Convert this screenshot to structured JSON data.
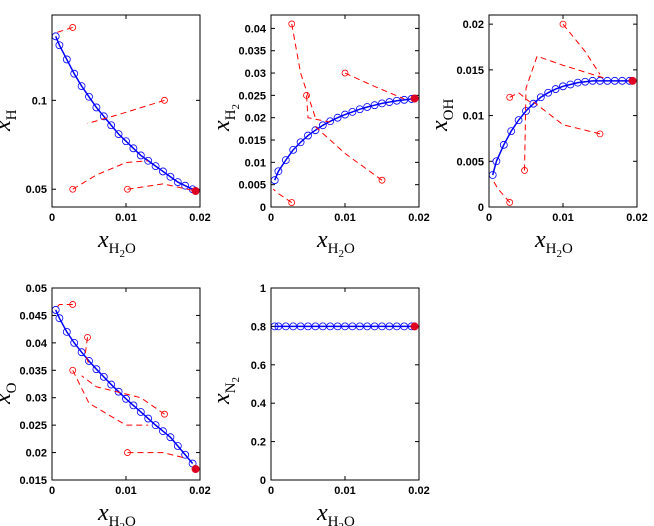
{
  "chart_data": [
    {
      "type": "line",
      "ylabel": {
        "base": "x",
        "sub": [
          "H"
        ]
      },
      "xlabel": {
        "base": "x",
        "sub": [
          "H",
          "2",
          "O"
        ]
      },
      "xlim": [
        0,
        0.02
      ],
      "xticks": [
        0,
        0.01,
        0.02
      ],
      "ylim": [
        0.04,
        0.148
      ],
      "yticks": [
        0.05,
        0.1
      ],
      "series": [
        {
          "color": "#0000ff",
          "marker": "open",
          "x": [
            0.0005,
            0.001,
            0.002,
            0.003,
            0.004,
            0.005,
            0.006,
            0.007,
            0.008,
            0.009,
            0.01,
            0.011,
            0.012,
            0.013,
            0.014,
            0.015,
            0.016,
            0.017,
            0.018,
            0.019
          ],
          "values": [
            0.136,
            0.131,
            0.123,
            0.115,
            0.108,
            0.102,
            0.096,
            0.091,
            0.086,
            0.081,
            0.077,
            0.073,
            0.069,
            0.066,
            0.063,
            0.06,
            0.057,
            0.054,
            0.052,
            0.05
          ]
        },
        {
          "color": "#ff0000",
          "dash": true,
          "marker": "start",
          "x": [
            0.0028,
            0.0005
          ],
          "values": [
            0.141,
            0.138
          ]
        },
        {
          "color": "#ff0000",
          "dash": true,
          "marker": "start",
          "x": [
            0.0152,
            0.009,
            0.0048
          ],
          "values": [
            0.1,
            0.092,
            0.087
          ]
        },
        {
          "color": "#ff0000",
          "dash": true,
          "marker": "start",
          "x": [
            0.0028,
            0.006,
            0.01,
            0.013
          ],
          "values": [
            0.05,
            0.058,
            0.065,
            0.066
          ]
        },
        {
          "color": "#ff0000",
          "dash": true,
          "marker": "start",
          "x": [
            0.0102,
            0.015,
            0.0194
          ],
          "values": [
            0.05,
            0.053,
            0.049
          ]
        },
        {
          "color": "#dd0022",
          "marker": "filled",
          "x": [
            0.0194
          ],
          "values": [
            0.049
          ]
        }
      ]
    },
    {
      "type": "line",
      "ylabel": {
        "base": "x",
        "sub": [
          "H",
          "2"
        ]
      },
      "xlabel": {
        "base": "x",
        "sub": [
          "H",
          "2",
          "O"
        ]
      },
      "xlim": [
        0,
        0.02
      ],
      "xticks": [
        0,
        0.01,
        0.02
      ],
      "ylim": [
        0,
        0.043
      ],
      "yticks": [
        0,
        0.005,
        0.01,
        0.015,
        0.02,
        0.025,
        0.03,
        0.035,
        0.04
      ],
      "series": [
        {
          "color": "#0000ff",
          "marker": "open",
          "x": [
            0.0005,
            0.001,
            0.002,
            0.003,
            0.004,
            0.005,
            0.006,
            0.007,
            0.008,
            0.009,
            0.01,
            0.011,
            0.012,
            0.013,
            0.014,
            0.015,
            0.016,
            0.017,
            0.018,
            0.019
          ],
          "values": [
            0.006,
            0.008,
            0.0105,
            0.0128,
            0.0145,
            0.016,
            0.0172,
            0.0183,
            0.0192,
            0.02,
            0.0207,
            0.0213,
            0.0219,
            0.0224,
            0.0228,
            0.0232,
            0.0235,
            0.0238,
            0.024,
            0.0242
          ]
        },
        {
          "color": "#ff0000",
          "dash": true,
          "marker": "start",
          "x": [
            0.0028,
            0.004,
            0.006
          ],
          "values": [
            0.041,
            0.03,
            0.02
          ]
        },
        {
          "color": "#ff0000",
          "dash": true,
          "marker": "start",
          "x": [
            0.01,
            0.014,
            0.018
          ],
          "values": [
            0.03,
            0.027,
            0.0242
          ]
        },
        {
          "color": "#ff0000",
          "dash": true,
          "marker": "start",
          "x": [
            0.0048,
            0.005,
            0.008
          ],
          "values": [
            0.025,
            0.02,
            0.019
          ]
        },
        {
          "color": "#ff0000",
          "dash": true,
          "marker": "start",
          "x": [
            0.015,
            0.01,
            0.006
          ],
          "values": [
            0.006,
            0.012,
            0.018
          ]
        },
        {
          "color": "#ff0000",
          "dash": true,
          "marker": "start",
          "x": [
            0.0028,
            0.001,
            0.0003
          ],
          "values": [
            0.001,
            0.003,
            0.004
          ]
        },
        {
          "color": "#dd0022",
          "marker": "filled",
          "x": [
            0.0194
          ],
          "values": [
            0.0243
          ]
        }
      ]
    },
    {
      "type": "line",
      "ylabel": {
        "base": "x",
        "sub": [
          "OH"
        ]
      },
      "xlabel": {
        "base": "x",
        "sub": [
          "H",
          "2",
          "O"
        ]
      },
      "xlim": [
        0,
        0.02
      ],
      "xticks": [
        0,
        0.01,
        0.02
      ],
      "ylim": [
        0,
        0.021
      ],
      "yticks": [
        0,
        0.005,
        0.01,
        0.015,
        0.02
      ],
      "series": [
        {
          "color": "#0000ff",
          "marker": "open",
          "x": [
            0.0005,
            0.001,
            0.002,
            0.003,
            0.004,
            0.005,
            0.006,
            0.007,
            0.008,
            0.009,
            0.01,
            0.011,
            0.012,
            0.013,
            0.014,
            0.015,
            0.016,
            0.017,
            0.018,
            0.019
          ],
          "values": [
            0.0035,
            0.005,
            0.0068,
            0.0083,
            0.0095,
            0.0105,
            0.0113,
            0.012,
            0.0125,
            0.0129,
            0.0132,
            0.0134,
            0.0136,
            0.0137,
            0.0138,
            0.0138,
            0.0138,
            0.0138,
            0.0138,
            0.0138
          ]
        },
        {
          "color": "#ff0000",
          "dash": true,
          "marker": "start",
          "x": [
            0.01,
            0.013,
            0.015
          ],
          "values": [
            0.02,
            0.017,
            0.0145
          ]
        },
        {
          "color": "#ff0000",
          "dash": true,
          "marker": "start",
          "x": [
            0.0028,
            0.004,
            0.0055
          ],
          "values": [
            0.012,
            0.0125,
            0.0115
          ]
        },
        {
          "color": "#ff0000",
          "dash": true,
          "marker": "start",
          "x": [
            0.0048,
            0.005,
            0.0065,
            0.01,
            0.016
          ],
          "values": [
            0.004,
            0.013,
            0.0165,
            0.0155,
            0.014
          ]
        },
        {
          "color": "#ff0000",
          "dash": true,
          "marker": "start",
          "x": [
            0.015,
            0.01,
            0.006
          ],
          "values": [
            0.008,
            0.009,
            0.0115
          ]
        },
        {
          "color": "#ff0000",
          "dash": true,
          "marker": "start",
          "x": [
            0.0028,
            0.0012,
            0.0005
          ],
          "values": [
            0.0005,
            0.002,
            0.003
          ]
        },
        {
          "color": "#dd0022",
          "marker": "filled",
          "x": [
            0.0194
          ],
          "values": [
            0.0138
          ]
        }
      ]
    },
    {
      "type": "line",
      "ylabel": {
        "base": "x",
        "sub": [
          "O"
        ]
      },
      "xlabel": {
        "base": "x",
        "sub": [
          "H",
          "2",
          "O"
        ]
      },
      "xlim": [
        0,
        0.02
      ],
      "xticks": [
        0,
        0.01,
        0.02
      ],
      "ylim": [
        0.015,
        0.05
      ],
      "yticks": [
        0.015,
        0.02,
        0.025,
        0.03,
        0.035,
        0.04,
        0.045,
        0.05
      ],
      "series": [
        {
          "color": "#0000ff",
          "marker": "open",
          "x": [
            0.0005,
            0.001,
            0.002,
            0.003,
            0.004,
            0.005,
            0.006,
            0.007,
            0.008,
            0.009,
            0.01,
            0.011,
            0.012,
            0.013,
            0.014,
            0.015,
            0.016,
            0.017,
            0.018,
            0.019
          ],
          "values": [
            0.046,
            0.0445,
            0.042,
            0.04,
            0.0383,
            0.0367,
            0.0352,
            0.0338,
            0.0324,
            0.0311,
            0.0298,
            0.0286,
            0.0274,
            0.0262,
            0.025,
            0.0239,
            0.0228,
            0.0212,
            0.0196,
            0.018
          ]
        },
        {
          "color": "#ff0000",
          "dash": true,
          "marker": "start",
          "x": [
            0.0028,
            0.001,
            0.0004
          ],
          "values": [
            0.047,
            0.047,
            0.046
          ]
        },
        {
          "color": "#ff0000",
          "dash": true,
          "marker": "start",
          "x": [
            0.0048,
            0.0045,
            0.005
          ],
          "values": [
            0.041,
            0.038,
            0.036
          ]
        },
        {
          "color": "#ff0000",
          "dash": true,
          "marker": "start",
          "x": [
            0.0028,
            0.005,
            0.01,
            0.013
          ],
          "values": [
            0.035,
            0.029,
            0.025,
            0.025
          ]
        },
        {
          "color": "#ff0000",
          "dash": true,
          "marker": "start",
          "x": [
            0.0152,
            0.012,
            0.006,
            0.004
          ],
          "values": [
            0.027,
            0.03,
            0.032,
            0.034
          ]
        },
        {
          "color": "#ff0000",
          "dash": true,
          "marker": "start",
          "x": [
            0.0102,
            0.015,
            0.018
          ],
          "values": [
            0.02,
            0.02,
            0.019
          ]
        },
        {
          "color": "#dd0022",
          "marker": "filled",
          "x": [
            0.0194
          ],
          "values": [
            0.017
          ]
        }
      ]
    },
    {
      "type": "line",
      "ylabel": {
        "base": "x",
        "sub": [
          "N",
          "2"
        ]
      },
      "xlabel": {
        "base": "x",
        "sub": [
          "H",
          "2",
          "O"
        ]
      },
      "xlim": [
        0,
        0.02
      ],
      "xticks": [
        0,
        0.01,
        0.02
      ],
      "ylim": [
        0,
        1
      ],
      "yticks": [
        0,
        0.2,
        0.4,
        0.6,
        0.8,
        1
      ],
      "series": [
        {
          "color": "#0000ff",
          "marker": "open",
          "x": [
            0.0005,
            0.001,
            0.002,
            0.003,
            0.004,
            0.005,
            0.006,
            0.007,
            0.008,
            0.009,
            0.01,
            0.011,
            0.012,
            0.013,
            0.014,
            0.015,
            0.016,
            0.017,
            0.018,
            0.019
          ],
          "values": [
            0.8,
            0.8,
            0.8,
            0.8,
            0.8,
            0.8,
            0.8,
            0.8,
            0.8,
            0.8,
            0.8,
            0.8,
            0.8,
            0.8,
            0.8,
            0.8,
            0.8,
            0.8,
            0.8,
            0.8
          ]
        },
        {
          "color": "#dd0022",
          "marker": "filled",
          "x": [
            0.0194
          ],
          "values": [
            0.8
          ]
        }
      ]
    }
  ]
}
